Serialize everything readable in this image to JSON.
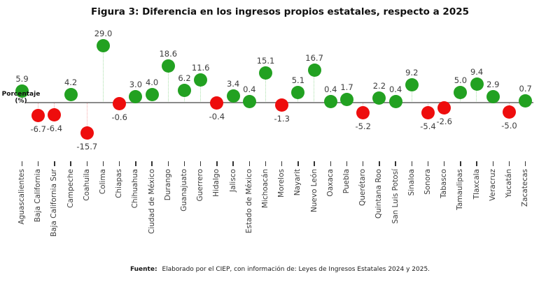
{
  "chart_data": {
    "type": "scatter",
    "style": "lollipop",
    "title": "Figura 3: Diferencia en los ingresos propios estatales, respecto a 2025",
    "ylabel": "Porcentaje (%)",
    "ylabel_lines": [
      "Porcentaje",
      "(%)"
    ],
    "xlabel": "",
    "ylim": [
      -18,
      31
    ],
    "grid": false,
    "legend": "none",
    "categories": [
      "Aguascalientes",
      "Baja California",
      "Baja California Sur",
      "Campeche",
      "Coahuila",
      "Colima",
      "Chiapas",
      "Chihuahua",
      "Ciudad de México",
      "Durango",
      "Guanajuato",
      "Guerrero",
      "Hidalgo",
      "Jalisco",
      "Estado de México",
      "Michoacán",
      "Morelos",
      "Nayarit",
      "Nuevo León",
      "Oaxaca",
      "Puebla",
      "Querétaro",
      "Quintana Roo",
      "San Luis Potosí",
      "Sinaloa",
      "Sonora",
      "Tabasco",
      "Tamaulipas",
      "Tlaxcala",
      "Veracruz",
      "Yucatán",
      "Zacatecas"
    ],
    "values": [
      5.9,
      -6.7,
      -6.4,
      4.2,
      -15.7,
      29.0,
      -0.6,
      3.0,
      4.0,
      18.6,
      6.2,
      11.6,
      -0.4,
      3.4,
      0.4,
      15.1,
      -1.3,
      5.1,
      16.7,
      0.4,
      1.7,
      -5.2,
      2.2,
      0.4,
      9.2,
      -5.4,
      -2.6,
      5.0,
      9.4,
      2.9,
      -5.0,
      0.7
    ],
    "colors": {
      "positive": "#22a121",
      "negative": "#ee0d0d",
      "positive_stem": "#a9dfa9",
      "negative_stem": "#f7a8a8",
      "axis_line": "#8a8a8a",
      "label_text": "#3d3d3d"
    }
  },
  "footer": {
    "label": "Fuente:",
    "text": "Elaborado por el CIEP, con información de: Leyes de Ingresos Estatales 2024 y 2025."
  }
}
